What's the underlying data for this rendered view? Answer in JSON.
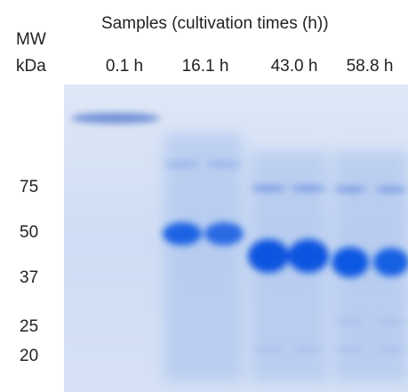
{
  "header": {
    "title": "Samples (cultivation times (h))",
    "mw_label": "MW",
    "unit_label": "kDa"
  },
  "lanes": [
    "0.1 h",
    "16.1 h",
    "43.0 h",
    "58.8 h"
  ],
  "markers": [
    "75",
    "50",
    "37",
    "25",
    "20"
  ]
}
